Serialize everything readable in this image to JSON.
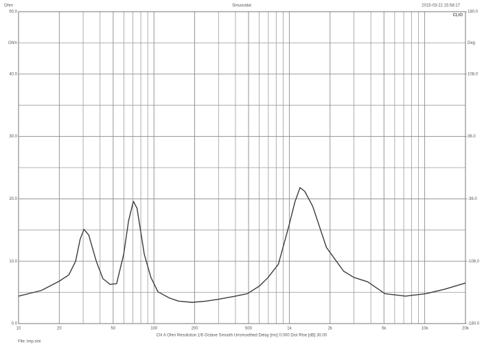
{
  "chart_data": {
    "type": "line",
    "header_left": "Ohm",
    "title": "Sinusoidal",
    "timestamp": "2015-03-22 15:58:17",
    "brand": "CLIO",
    "ylabel": "Ohm",
    "y2label": "Deg",
    "footer": "CH A   Ohm   Resolution 1/6 Octave   Smooth Unsmoothed   Delay [ms] 0.000   Dist Rise [dB] 30.00",
    "file": "File: imp.sini",
    "log_x": true,
    "grid": true,
    "xlim": [
      10,
      20000
    ],
    "xticks": [
      10,
      20,
      50,
      100,
      200,
      500,
      {
        "value": 1000,
        "label": "1k"
      },
      {
        "value": 2000,
        "label": "2k"
      },
      {
        "value": 5000,
        "label": "5k"
      },
      {
        "value": 10000,
        "label": "10k"
      },
      {
        "value": 20000,
        "label": "20k"
      }
    ],
    "x_minor_ticks": [
      30,
      40,
      60,
      70,
      80,
      90,
      300,
      400,
      600,
      700,
      800,
      900,
      3000,
      4000,
      6000,
      7000,
      8000,
      9000
    ],
    "ylim": [
      0,
      50
    ],
    "yticks": [
      {
        "value": 0,
        "label": "0.0"
      },
      {
        "value": 10,
        "label": "10.0"
      },
      {
        "value": 20,
        "label": "20.0"
      },
      {
        "value": 30,
        "label": "30.0"
      },
      {
        "value": 40,
        "label": "40.0"
      },
      {
        "value": 50,
        "label": "50.0"
      }
    ],
    "y_minor_ticks": [
      5,
      15,
      25,
      35,
      45
    ],
    "y2lim": [
      -180,
      180
    ],
    "y2ticks": [
      {
        "value": -180,
        "label": "-180.0"
      },
      {
        "value": -108,
        "label": "-108.0"
      },
      {
        "value": -36,
        "label": "-36.0"
      },
      {
        "value": 36,
        "label": "36.0"
      },
      {
        "value": 108,
        "label": "108.0"
      },
      {
        "value": 180,
        "label": "180.0"
      }
    ],
    "ylabel_at": 45,
    "x": [
      10,
      14.7,
      17,
      20,
      23.5,
      26.4,
      28.5,
      30.4,
      33,
      37.5,
      42,
      47.3,
      53,
      59.8,
      65,
      70.5,
      75,
      84.9,
      95,
      107,
      130,
      152,
      192,
      243,
      300,
      400,
      490,
      600,
      697,
      830,
      988,
      1100,
      1200,
      1300,
      1489,
      1880,
      2518,
      3000,
      3790,
      5080,
      7210,
      10230,
      14000,
      20000
    ],
    "series": [
      {
        "color": "#3a3a3a",
        "values": [
          4.4,
          5.3,
          6.0,
          6.8,
          7.8,
          10,
          13.5,
          15.1,
          14.2,
          10,
          7.2,
          6.3,
          6.4,
          11.1,
          16.5,
          19.6,
          18.5,
          11.1,
          7.4,
          5.1,
          4.1,
          3.6,
          3.4,
          3.6,
          3.9,
          4.4,
          4.8,
          6.0,
          7.4,
          9.5,
          15.5,
          19.5,
          21.8,
          21.2,
          18.8,
          12.2,
          8.4,
          7.4,
          6.7,
          4.8,
          4.4,
          4.8,
          5.5,
          6.5
        ]
      }
    ]
  }
}
